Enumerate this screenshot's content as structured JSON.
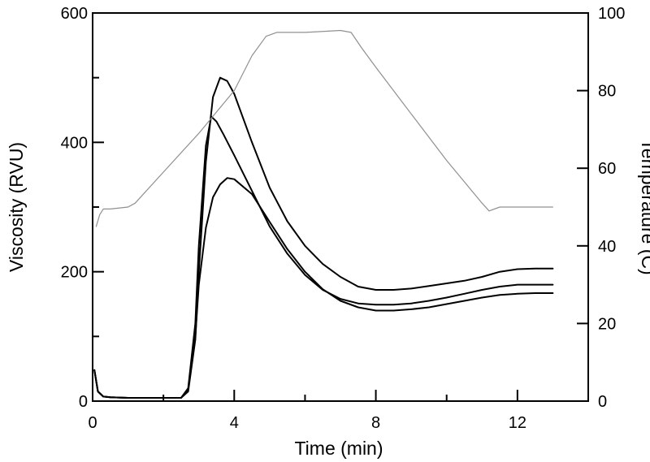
{
  "chart_data": {
    "type": "line",
    "title": "",
    "xlabel": "Time (min)",
    "ylabel_left": "Viscosity (RVU)",
    "ylabel_right": "Temperature (C)",
    "xlim": [
      0,
      14
    ],
    "ylim_left": [
      0,
      600
    ],
    "ylim_right": [
      0,
      100
    ],
    "xticks": [
      0,
      4,
      8,
      12
    ],
    "xticks_minor": [
      2,
      6,
      10,
      14
    ],
    "yticks_left": [
      0,
      200,
      400,
      600
    ],
    "yticks_left_minor": [
      100,
      300,
      500
    ],
    "yticks_right": [
      0,
      20,
      40,
      60,
      80,
      100
    ],
    "grid": false,
    "legend": "none",
    "series": [
      {
        "axis": "left",
        "color": "#000000",
        "x": [
          0.05,
          0.15,
          0.3,
          0.5,
          1.0,
          2.0,
          2.5,
          2.7,
          2.9,
          3.0,
          3.2,
          3.4,
          3.6,
          3.8,
          4.0,
          4.5,
          5.0,
          5.5,
          6.0,
          6.5,
          7.0,
          7.5,
          8.0,
          8.5,
          9.0,
          9.5,
          10.0,
          10.5,
          11.0,
          11.5,
          12.0,
          12.5,
          13.0
        ],
        "y": [
          48,
          15,
          7,
          6,
          5,
          5,
          5,
          15,
          95,
          200,
          370,
          470,
          500,
          495,
          475,
          400,
          330,
          278,
          240,
          212,
          192,
          177,
          172,
          172,
          174,
          178,
          182,
          186,
          192,
          200,
          204,
          205,
          205
        ]
      },
      {
        "axis": "left",
        "color": "#000000",
        "x": [
          0.05,
          0.15,
          0.3,
          0.5,
          1.0,
          2.0,
          2.5,
          2.7,
          2.9,
          3.0,
          3.2,
          3.35,
          3.5,
          3.7,
          4.0,
          4.5,
          5.0,
          5.5,
          6.0,
          6.5,
          7.0,
          7.5,
          8.0,
          8.5,
          9.0,
          9.5,
          10.0,
          10.5,
          11.0,
          11.5,
          12.0,
          12.5,
          13.0
        ],
        "y": [
          48,
          15,
          7,
          6,
          5,
          5,
          5,
          20,
          120,
          240,
          395,
          440,
          432,
          412,
          380,
          325,
          270,
          228,
          195,
          172,
          158,
          151,
          149,
          149,
          151,
          155,
          160,
          166,
          172,
          177,
          180,
          180,
          180
        ]
      },
      {
        "axis": "left",
        "color": "#000000",
        "x": [
          0.05,
          0.15,
          0.3,
          0.5,
          1.0,
          2.0,
          2.5,
          2.7,
          2.9,
          3.0,
          3.2,
          3.4,
          3.6,
          3.8,
          4.0,
          4.5,
          5.0,
          5.5,
          6.0,
          6.5,
          7.0,
          7.5,
          8.0,
          8.5,
          9.0,
          9.5,
          10.0,
          10.5,
          11.0,
          11.5,
          12.0,
          12.5,
          13.0
        ],
        "y": [
          48,
          15,
          7,
          6,
          5,
          5,
          5,
          18,
          100,
          180,
          268,
          315,
          335,
          345,
          343,
          320,
          277,
          235,
          200,
          173,
          155,
          145,
          140,
          140,
          142,
          145,
          150,
          155,
          160,
          164,
          166,
          167,
          167
        ]
      },
      {
        "axis": "right",
        "color": "#909090",
        "x": [
          0.1,
          0.2,
          0.3,
          0.5,
          1.0,
          1.2,
          2.0,
          3.0,
          4.0,
          4.5,
          4.9,
          5.2,
          6.0,
          7.0,
          7.3,
          7.6,
          8.0,
          9.0,
          10.0,
          11.0,
          11.2,
          11.5,
          12.0,
          12.5,
          13.0
        ],
        "y": [
          45,
          48,
          49.5,
          49.5,
          50,
          51,
          59,
          69,
          80,
          89,
          94,
          95,
          95,
          95.5,
          95,
          91,
          86,
          74,
          62,
          51,
          49,
          50,
          50,
          50,
          50
        ]
      }
    ]
  }
}
